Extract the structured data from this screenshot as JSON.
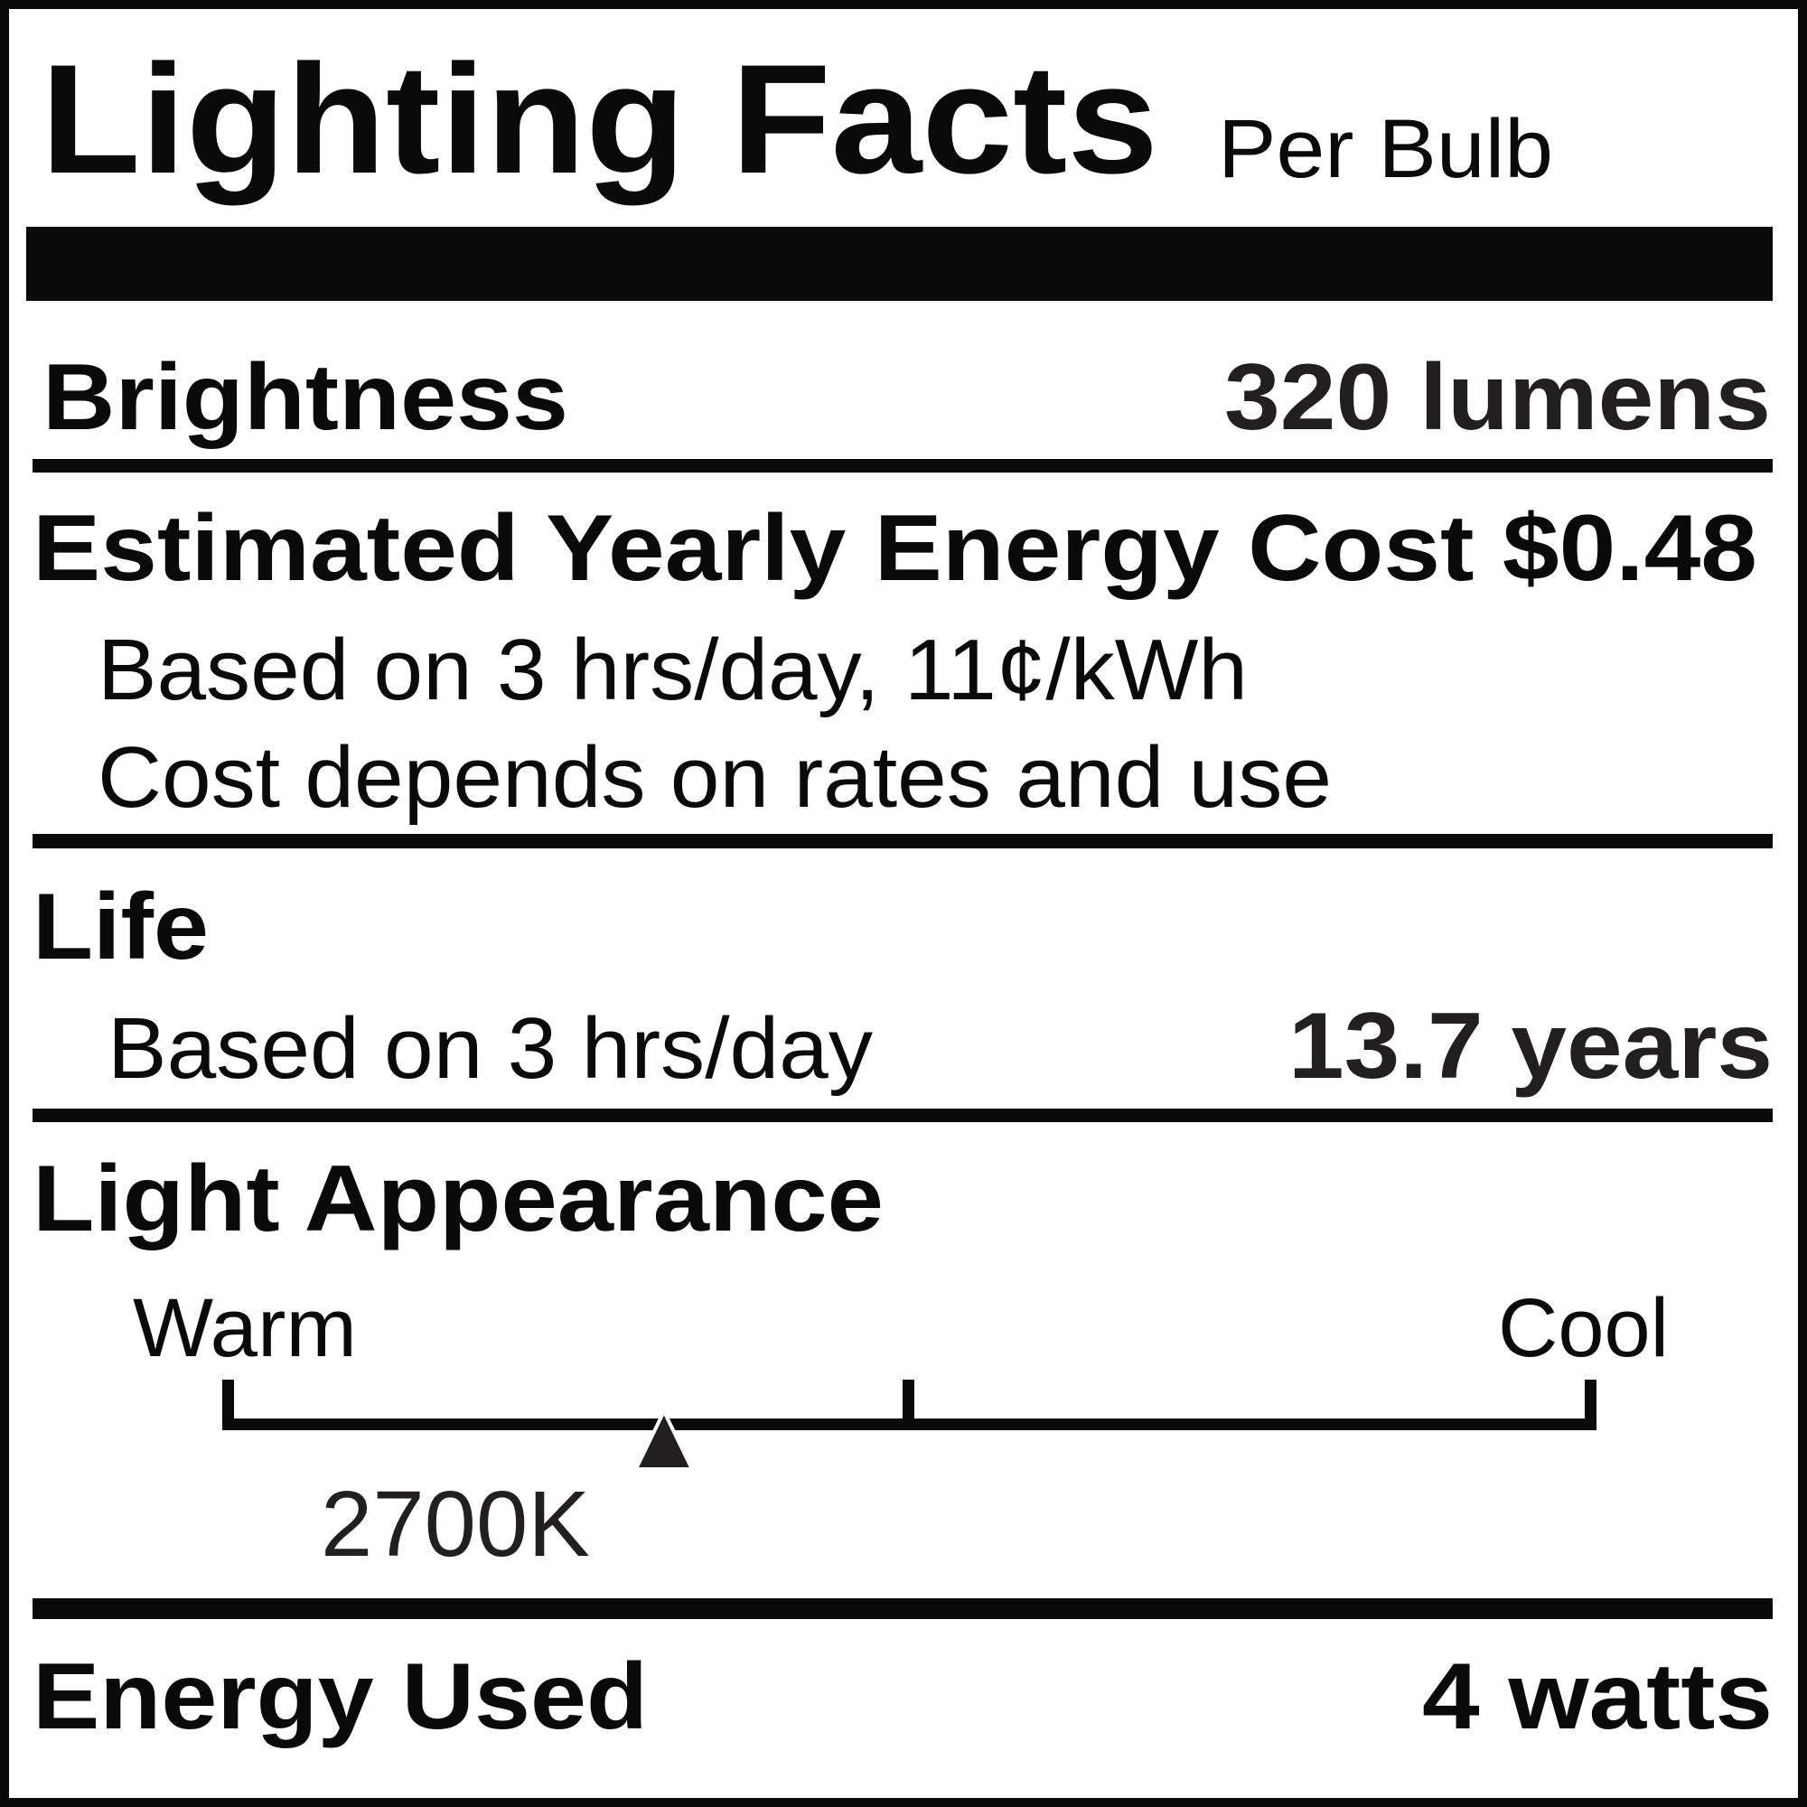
{
  "title": "Lighting Facts",
  "subtitle": "Per Bulb",
  "brightness": {
    "label": "Brightness",
    "value": "320 lumens"
  },
  "energy_cost": {
    "label": "Estimated Yearly Energy Cost",
    "value": "$0.48",
    "basis": "Based on 3 hrs/day, 11¢/kWh",
    "note": "Cost depends on rates and use"
  },
  "life": {
    "label": "Life",
    "basis": "Based on 3 hrs/day",
    "value": "13.7 years"
  },
  "light_appearance": {
    "label": "Light Appearance",
    "warm_label": "Warm",
    "cool_label": "Cool",
    "value": "2700K",
    "scale_position_percent": 32
  },
  "energy_used": {
    "label": "Energy Used",
    "value": "4 watts"
  },
  "colors": {
    "ink": "#0a0a0a",
    "background": "#ffffff"
  }
}
